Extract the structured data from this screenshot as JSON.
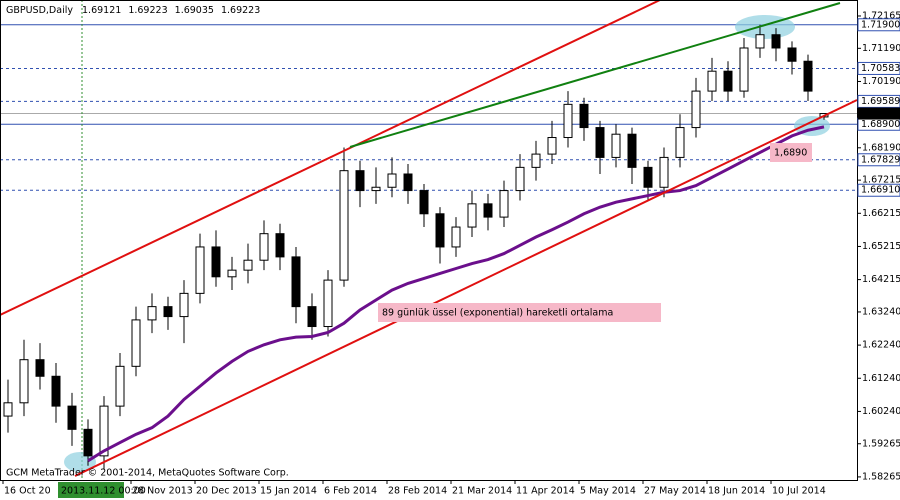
{
  "chart_data": {
    "type": "candlestick",
    "title": "GBPUSD,Daily",
    "ylim": [
      1.58172,
      1.72647
    ],
    "yticks": [
      1.72165,
      {
        "value": 1.7119,
        "label": "1.71190"
      },
      {
        "value": 1.7019,
        "label": "1.70190"
      },
      {
        "value": 1.6819,
        "label": "1.68190"
      },
      1.67215,
      1.66215,
      1.65215,
      1.64215,
      {
        "value": 1.6324,
        "label": "1.63240"
      },
      {
        "value": 1.6224,
        "label": "1.62240"
      },
      {
        "value": 1.6124,
        "label": "1.61240"
      },
      {
        "value": 1.6024,
        "label": "1.60240"
      },
      1.59265,
      1.58265
    ],
    "x_labels": [
      "16 Oct 20",
      "28 Nov 2013",
      "20 Dec 2013",
      "15 Jan 2014",
      "6 Feb 2014",
      "28 Feb 2014",
      "21 Mar 2014",
      "11 Apr 2014",
      "5 May 2014",
      "27 May 2014",
      "18 Jun 2014",
      "10 Jul 2014"
    ],
    "crosshair_label": "2013.11.12 00:00",
    "levels": [
      {
        "value": 1.719,
        "label": "1.71900",
        "style": "solid"
      },
      {
        "value": 1.70583,
        "label": "1.70583",
        "style": "dashed"
      },
      {
        "value": 1.69589,
        "label": "1.69589",
        "style": "dashed"
      },
      {
        "value": 1.689,
        "label": "1.68900",
        "style": "solid"
      },
      {
        "value": 1.67829,
        "label": "1.67829",
        "style": "dashed"
      },
      {
        "value": 1.6691,
        "label": "1.66910",
        "style": "dashed"
      }
    ],
    "series": [
      {
        "name": "GBPUSD",
        "color": "#000000",
        "open": [
          1.601,
          1.605,
          1.618,
          1.613,
          1.604,
          1.597,
          1.589,
          1.604,
          1.616,
          1.63,
          1.634,
          1.631,
          1.638,
          1.652,
          1.643,
          1.645,
          1.648,
          1.656,
          1.649,
          1.634,
          1.628,
          1.642,
          1.675,
          1.669,
          1.67,
          1.674,
          1.669,
          1.662,
          1.652,
          1.658,
          1.665,
          1.661,
          1.669,
          1.676,
          1.68,
          1.685,
          1.695,
          1.688,
          1.679,
          1.686,
          1.676,
          1.67,
          1.679,
          1.688,
          1.699,
          1.705,
          1.699,
          1.712,
          1.716,
          1.712,
          1.708,
          1.69121
        ],
        "high": [
          1.612,
          1.624,
          1.623,
          1.617,
          1.608,
          1.6,
          1.607,
          1.62,
          1.634,
          1.638,
          1.637,
          1.642,
          1.656,
          1.657,
          1.649,
          1.653,
          1.66,
          1.659,
          1.652,
          1.638,
          1.645,
          1.682,
          1.678,
          1.676,
          1.679,
          1.677,
          1.671,
          1.664,
          1.661,
          1.669,
          1.668,
          1.672,
          1.68,
          1.684,
          1.69,
          1.699,
          1.697,
          1.69,
          1.689,
          1.688,
          1.678,
          1.682,
          1.692,
          1.703,
          1.709,
          1.708,
          1.715,
          1.719,
          1.718,
          1.714,
          1.71,
          1.69223
        ],
        "low": [
          1.596,
          1.601,
          1.609,
          1.599,
          1.592,
          1.586,
          1.585,
          1.601,
          1.613,
          1.626,
          1.627,
          1.623,
          1.635,
          1.64,
          1.639,
          1.641,
          1.645,
          1.645,
          1.629,
          1.624,
          1.625,
          1.64,
          1.664,
          1.665,
          1.667,
          1.665,
          1.658,
          1.647,
          1.649,
          1.655,
          1.657,
          1.658,
          1.666,
          1.672,
          1.677,
          1.682,
          1.684,
          1.674,
          1.676,
          1.671,
          1.666,
          1.667,
          1.676,
          1.685,
          1.696,
          1.696,
          1.697,
          1.709,
          1.708,
          1.704,
          1.696,
          1.69035
        ],
        "close": [
          1.605,
          1.618,
          1.613,
          1.604,
          1.597,
          1.589,
          1.604,
          1.616,
          1.63,
          1.634,
          1.631,
          1.638,
          1.652,
          1.643,
          1.645,
          1.648,
          1.656,
          1.649,
          1.634,
          1.628,
          1.642,
          1.675,
          1.669,
          1.67,
          1.674,
          1.669,
          1.662,
          1.652,
          1.658,
          1.665,
          1.661,
          1.669,
          1.676,
          1.68,
          1.685,
          1.695,
          1.688,
          1.679,
          1.686,
          1.676,
          1.67,
          1.679,
          1.688,
          1.699,
          1.705,
          1.699,
          1.712,
          1.716,
          1.712,
          1.708,
          1.699,
          1.69223
        ]
      },
      {
        "type": "line",
        "color": "#6b0f8c",
        "values": [
          null,
          null,
          null,
          null,
          null,
          1.5875,
          1.5905,
          1.593,
          1.5955,
          1.5975,
          1.601,
          1.606,
          1.61,
          1.614,
          1.6175,
          1.6205,
          1.6225,
          1.624,
          1.6248,
          1.625,
          1.6262,
          1.629,
          1.633,
          1.636,
          1.639,
          1.641,
          1.6425,
          1.644,
          1.6455,
          1.647,
          1.6482,
          1.65,
          1.6525,
          1.655,
          1.6572,
          1.6595,
          1.662,
          1.664,
          1.6655,
          1.6665,
          1.6675,
          1.6685,
          1.669,
          1.6705,
          1.673,
          1.6755,
          1.678,
          1.6805,
          1.683,
          1.6855,
          1.6872,
          1.6882
        ]
      }
    ],
    "annotations": [
      {
        "text": "89 günlük üssel (exponential) hareketli ortalama"
      },
      {
        "text": "1,6890"
      }
    ],
    "footer": "GCM MetaTrader © 2001-2014, MetaQuotes Software Corp."
  }
}
